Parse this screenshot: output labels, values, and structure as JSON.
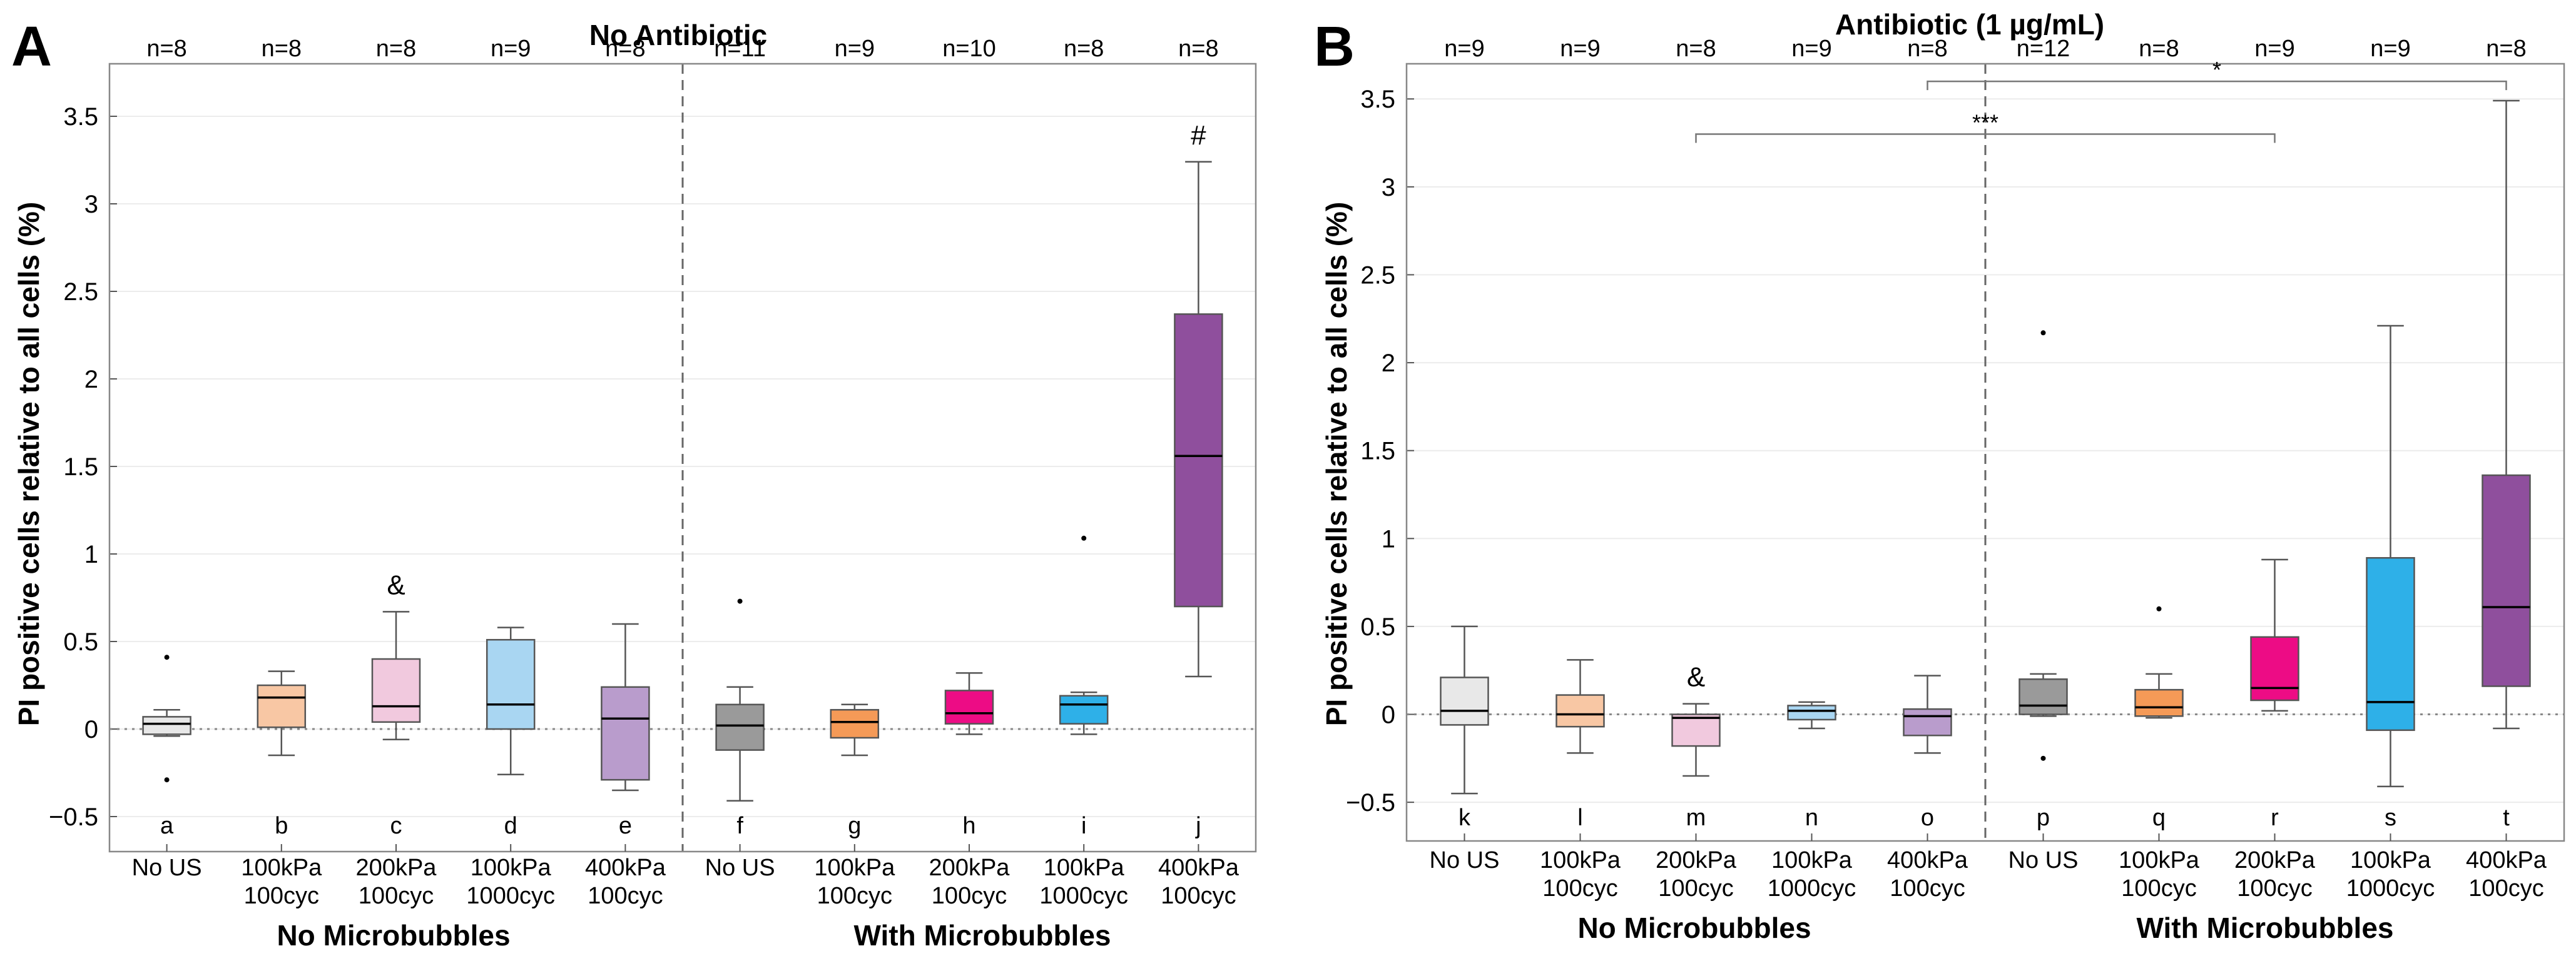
{
  "chart_data": [
    {
      "type": "box",
      "panel": "A",
      "title": "No Antibiotic",
      "ylabel": "PI positive cells relative to all cells  (%)",
      "ylim": [
        -0.7,
        3.8
      ],
      "yticks": [
        -0.5,
        0,
        0.5,
        1,
        1.5,
        2,
        2.5,
        3,
        3.5
      ],
      "ytick_labels": [
        "−0.5",
        "0",
        "0.5",
        "1",
        "1.5",
        "2",
        "2.5",
        "3",
        "3.5"
      ],
      "reference_line": 0,
      "divider_after_index": 4,
      "groups": [
        "No Microbubbles",
        "With Microbubbles"
      ],
      "categories": [
        {
          "line1": "No US",
          "line2": ""
        },
        {
          "line1": "100kPa",
          "line2": "100cyc"
        },
        {
          "line1": "200kPa",
          "line2": "100cyc"
        },
        {
          "line1": "100kPa",
          "line2": "1000cyc"
        },
        {
          "line1": "400kPa",
          "line2": "100cyc"
        },
        {
          "line1": "No US",
          "line2": ""
        },
        {
          "line1": "100kPa",
          "line2": "100cyc"
        },
        {
          "line1": "200kPa",
          "line2": "100cyc"
        },
        {
          "line1": "100kPa",
          "line2": "1000cyc"
        },
        {
          "line1": "400kPa",
          "line2": "100cyc"
        }
      ],
      "n_labels": [
        "n=8",
        "n=8",
        "n=8",
        "n=9",
        "n=8",
        "n=11",
        "n=9",
        "n=10",
        "n=8",
        "n=8"
      ],
      "box_letters": [
        "a",
        "b",
        "c",
        "d",
        "e",
        "f",
        "g",
        "h",
        "i",
        "j"
      ],
      "boxes": [
        {
          "q1": -0.03,
          "median": 0.03,
          "q3": 0.07,
          "wlo": -0.04,
          "whi": 0.11,
          "outliers": [
            0.41,
            -0.29
          ],
          "color": "#e8e8e8",
          "mark": ""
        },
        {
          "q1": 0.01,
          "median": 0.18,
          "q3": 0.25,
          "wlo": -0.15,
          "whi": 0.33,
          "outliers": [],
          "color": "#f8c7a4",
          "mark": ""
        },
        {
          "q1": 0.04,
          "median": 0.13,
          "q3": 0.4,
          "wlo": -0.06,
          "whi": 0.67,
          "outliers": [],
          "color": "#f1c9de",
          "mark": "&"
        },
        {
          "q1": 0.0,
          "median": 0.14,
          "q3": 0.51,
          "wlo": -0.26,
          "whi": 0.58,
          "outliers": [],
          "color": "#a9d6f2",
          "mark": ""
        },
        {
          "q1": -0.29,
          "median": 0.06,
          "q3": 0.24,
          "wlo": -0.35,
          "whi": 0.6,
          "outliers": [],
          "color": "#b99ccc",
          "mark": ""
        },
        {
          "q1": -0.12,
          "median": 0.02,
          "q3": 0.14,
          "wlo": -0.41,
          "whi": 0.24,
          "outliers": [
            0.73
          ],
          "color": "#9a9a9a",
          "mark": ""
        },
        {
          "q1": -0.05,
          "median": 0.04,
          "q3": 0.11,
          "wlo": -0.15,
          "whi": 0.14,
          "outliers": [],
          "color": "#f59a57",
          "mark": ""
        },
        {
          "q1": 0.03,
          "median": 0.09,
          "q3": 0.22,
          "wlo": -0.03,
          "whi": 0.32,
          "outliers": [],
          "color": "#ed0c85",
          "mark": ""
        },
        {
          "q1": 0.03,
          "median": 0.14,
          "q3": 0.19,
          "wlo": -0.03,
          "whi": 0.21,
          "outliers": [
            1.09
          ],
          "color": "#2eb0e8",
          "mark": ""
        },
        {
          "q1": 0.7,
          "median": 1.56,
          "q3": 2.37,
          "wlo": 0.3,
          "whi": 3.24,
          "outliers": [],
          "color": "#8f4f9d",
          "mark": "#"
        }
      ],
      "significance": []
    },
    {
      "type": "box",
      "panel": "B",
      "title": "Antibiotic (1 µg/mL)",
      "ylabel": "PI positive cells relative to all cells (%)",
      "ylim": [
        -0.72,
        3.7
      ],
      "yticks": [
        -0.5,
        0,
        0.5,
        1,
        1.5,
        2,
        2.5,
        3,
        3.5
      ],
      "ytick_labels": [
        "−0.5",
        "0",
        "0.5",
        "1",
        "1.5",
        "2",
        "2.5",
        "3",
        "3.5"
      ],
      "reference_line": 0,
      "divider_after_index": 4,
      "groups": [
        "No Microbubbles",
        "With Microbubbles"
      ],
      "categories": [
        {
          "line1": "No US",
          "line2": ""
        },
        {
          "line1": "100kPa",
          "line2": "100cyc"
        },
        {
          "line1": "200kPa",
          "line2": "100cyc"
        },
        {
          "line1": "100kPa",
          "line2": "1000cyc"
        },
        {
          "line1": "400kPa",
          "line2": "100cyc"
        },
        {
          "line1": "No US",
          "line2": ""
        },
        {
          "line1": "100kPa",
          "line2": "100cyc"
        },
        {
          "line1": "200kPa",
          "line2": "100cyc"
        },
        {
          "line1": "100kPa",
          "line2": "1000cyc"
        },
        {
          "line1": "400kPa",
          "line2": "100cyc"
        }
      ],
      "n_labels": [
        "n=9",
        "n=9",
        "n=8",
        "n=9",
        "n=8",
        "n=12",
        "n=8",
        "n=9",
        "n=9",
        "n=8"
      ],
      "box_letters": [
        "k",
        "l",
        "m",
        "n",
        "o",
        "p",
        "q",
        "r",
        "s",
        "t"
      ],
      "boxes": [
        {
          "q1": -0.06,
          "median": 0.02,
          "q3": 0.21,
          "wlo": -0.45,
          "whi": 0.5,
          "outliers": [],
          "color": "#e8e8e8",
          "mark": ""
        },
        {
          "q1": -0.07,
          "median": 0.0,
          "q3": 0.11,
          "wlo": -0.22,
          "whi": 0.31,
          "outliers": [],
          "color": "#f8c7a4",
          "mark": ""
        },
        {
          "q1": -0.18,
          "median": -0.02,
          "q3": 0.0,
          "wlo": -0.35,
          "whi": 0.06,
          "outliers": [],
          "color": "#f1c9de",
          "mark": "&"
        },
        {
          "q1": -0.03,
          "median": 0.02,
          "q3": 0.05,
          "wlo": -0.08,
          "whi": 0.07,
          "outliers": [],
          "color": "#a9d6f2",
          "mark": ""
        },
        {
          "q1": -0.12,
          "median": -0.01,
          "q3": 0.03,
          "wlo": -0.22,
          "whi": 0.22,
          "outliers": [],
          "color": "#b99ccc",
          "mark": ""
        },
        {
          "q1": 0.0,
          "median": 0.05,
          "q3": 0.2,
          "wlo": -0.01,
          "whi": 0.23,
          "outliers": [
            2.17,
            -0.25
          ],
          "color": "#9a9a9a",
          "mark": ""
        },
        {
          "q1": -0.01,
          "median": 0.04,
          "q3": 0.14,
          "wlo": -0.02,
          "whi": 0.23,
          "outliers": [
            0.6
          ],
          "color": "#f59a57",
          "mark": ""
        },
        {
          "q1": 0.08,
          "median": 0.15,
          "q3": 0.44,
          "wlo": 0.02,
          "whi": 0.88,
          "outliers": [],
          "color": "#ed0c85",
          "mark": ""
        },
        {
          "q1": -0.09,
          "median": 0.07,
          "q3": 0.89,
          "wlo": -0.41,
          "whi": 2.21,
          "outliers": [],
          "color": "#2eb0e8",
          "mark": ""
        },
        {
          "q1": 0.16,
          "median": 0.61,
          "q3": 1.36,
          "wlo": -0.08,
          "whi": 3.49,
          "outliers": [],
          "color": "#8f4f9d",
          "mark": ""
        }
      ],
      "significance": [
        {
          "from": 4,
          "to": 9,
          "y": 3.6,
          "label": "*"
        },
        {
          "from": 2,
          "to": 7,
          "y": 3.3,
          "label": "***"
        }
      ]
    }
  ]
}
